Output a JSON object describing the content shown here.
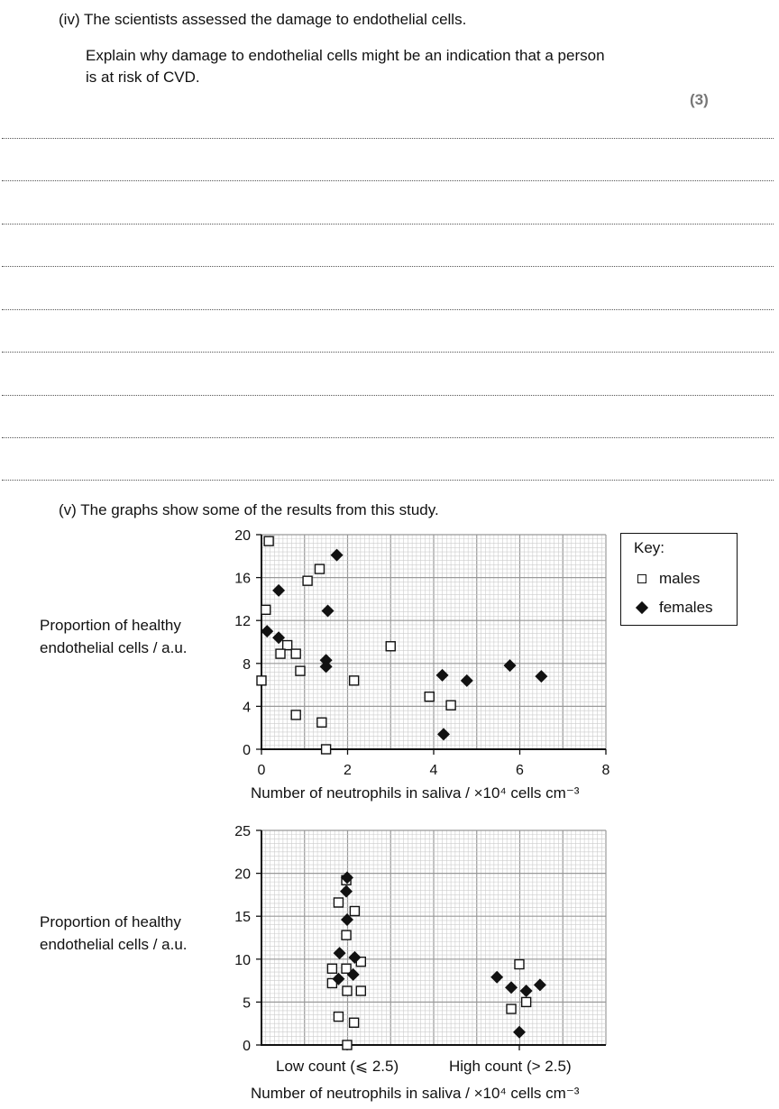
{
  "question_iv": {
    "stem": "(iv) The scientists assessed the damage to endothelial cells.",
    "prompt_line1": "Explain why damage to endothelial cells might be an indication that a person",
    "prompt_line2": "is at risk of CVD.",
    "marks": "(3)"
  },
  "question_v": {
    "stem": "(v) The graphs show some of the results from this study."
  },
  "key": {
    "title": "Key:",
    "males": "males",
    "females": "females"
  },
  "chart_data": [
    {
      "type": "scatter",
      "ylabel_line1": "Proportion of healthy",
      "ylabel_line2": "endothelial cells / a.u.",
      "xlabel": "Number of neutrophils in saliva / ×10⁴ cells cm⁻³",
      "xlim": [
        0,
        8
      ],
      "ylim": [
        0,
        20
      ],
      "xticks": [
        "0",
        "2",
        "4",
        "6",
        "8"
      ],
      "yticks": [
        "0",
        "4",
        "8",
        "12",
        "16",
        "20"
      ],
      "grid": true,
      "series": [
        {
          "name": "males",
          "marker": "open-square",
          "points": [
            [
              0.17,
              19.4
            ],
            [
              0.1,
              13.0
            ],
            [
              0.6,
              9.7
            ],
            [
              0.44,
              8.9
            ],
            [
              0.8,
              8.9
            ],
            [
              0.9,
              7.3
            ],
            [
              0,
              6.4
            ],
            [
              0.8,
              3.2
            ],
            [
              1.07,
              15.7
            ],
            [
              1.35,
              16.8
            ],
            [
              1.4,
              2.5
            ],
            [
              1.5,
              0
            ],
            [
              2.15,
              6.4
            ],
            [
              3.0,
              9.6
            ],
            [
              3.9,
              4.9
            ],
            [
              4.4,
              4.1
            ]
          ]
        },
        {
          "name": "females",
          "marker": "filled-diamond",
          "points": [
            [
              1.75,
              18.1
            ],
            [
              0.4,
              14.8
            ],
            [
              1.54,
              12.9
            ],
            [
              0.13,
              11.0
            ],
            [
              0.4,
              10.4
            ],
            [
              1.5,
              8.3
            ],
            [
              1.5,
              7.7
            ],
            [
              4.2,
              6.9
            ],
            [
              4.77,
              6.4
            ],
            [
              5.77,
              7.8
            ],
            [
              6.5,
              6.8
            ],
            [
              4.23,
              1.4
            ]
          ]
        }
      ]
    },
    {
      "type": "scatter",
      "ylabel_line1": "Proportion of healthy",
      "ylabel_line2": "endothelial cells / a.u.",
      "xlabel": "Number of neutrophils in saliva / ×10⁴ cells cm⁻³",
      "categories": [
        "Low count (⩽ 2.5)",
        "High count (> 2.5)"
      ],
      "ylim": [
        0,
        25
      ],
      "yticks": [
        "0",
        "5",
        "10",
        "15",
        "20",
        "25"
      ],
      "grid": true,
      "series": [
        {
          "name": "males",
          "marker": "open-square",
          "points": [
            [
              -0.005,
              19.2
            ],
            [
              -0.05,
              16.6
            ],
            [
              0.044,
              15.6
            ],
            [
              -0.005,
              12.8
            ],
            [
              -0.087,
              8.9
            ],
            [
              -0.005,
              8.9
            ],
            [
              0.08,
              9.7
            ],
            [
              -0.087,
              7.2
            ],
            [
              0,
              6.3
            ],
            [
              0.08,
              6.3
            ],
            [
              -0.05,
              3.3
            ],
            [
              0.04,
              2.6
            ],
            [
              0,
              0
            ],
            [
              1,
              9.4
            ],
            [
              0.953,
              4.2
            ],
            [
              1.04,
              5.0
            ]
          ]
        },
        {
          "name": "females",
          "marker": "filled-diamond",
          "points": [
            [
              0,
              19.5
            ],
            [
              -0.005,
              17.9
            ],
            [
              0,
              14.6
            ],
            [
              -0.044,
              10.7
            ],
            [
              0.044,
              10.2
            ],
            [
              -0.05,
              7.7
            ],
            [
              0.035,
              8.2
            ],
            [
              0.87,
              7.9
            ],
            [
              0.953,
              6.7
            ],
            [
              1.04,
              6.3
            ],
            [
              1.12,
              7.0
            ],
            [
              1,
              1.5
            ]
          ]
        }
      ]
    }
  ]
}
